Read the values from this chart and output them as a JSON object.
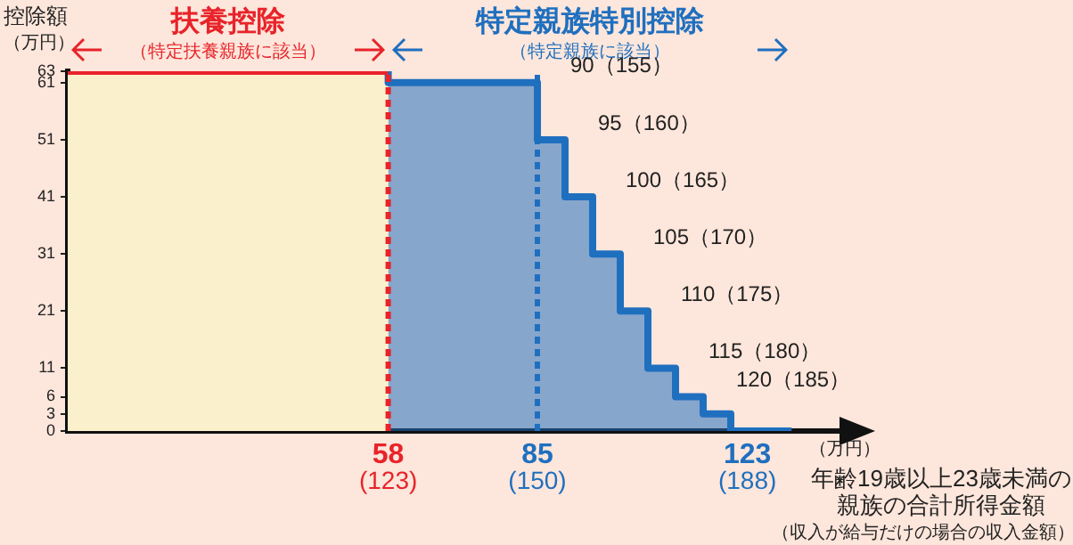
{
  "chart_data": {
    "type": "step",
    "ylabel": "控除額（万円）",
    "xlabel": "年齢19歳以上23歳未満の親族の合計所得金額",
    "xlim": [
      0,
      140
    ],
    "xticks": [
      58,
      85,
      123
    ],
    "x2lim": [
      65,
      205
    ],
    "x2ticks": [
      {
        "value": 123,
        "label": "(123)"
      },
      {
        "value": 150,
        "label": "(150)"
      },
      {
        "value": 188,
        "label": "(188)"
      }
    ],
    "ylim": [
      0,
      63
    ],
    "yticks": [
      0,
      3,
      6,
      11,
      21,
      31,
      41,
      51,
      61,
      63
    ],
    "series": [
      {
        "name": "扶養控除",
        "color": "#e8232a",
        "x": [
          0,
          58
        ],
        "values": [
          63,
          63
        ]
      },
      {
        "name": "特定親族特別控除",
        "type": "area",
        "color": "#1f6fbf",
        "x": [
          58,
          85,
          90,
          95,
          100,
          105,
          110,
          115,
          120,
          123,
          131
        ],
        "values": [
          63,
          61,
          51,
          41,
          31,
          21,
          11,
          6,
          3,
          0,
          0
        ]
      }
    ],
    "bands": [
      {
        "axis": "x",
        "from": 0,
        "to": 58,
        "color": "#fbf0cc"
      }
    ],
    "ref_lines": [
      {
        "axis": "x",
        "value": 58,
        "color": "#e8232a",
        "line_style": "dotted"
      },
      {
        "axis": "x",
        "value": 85,
        "color": "#1f6fbf",
        "line_style": "dotted"
      }
    ],
    "annotations": [
      "（特定扶養親族に該当）",
      "（特定親族に該当）",
      "（万円）",
      "（収入が給与だけの場合の収入金額）",
      {
        "text": "90（155）",
        "x": 90,
        "y": 51
      },
      {
        "text": "95（160）",
        "x": 95,
        "y": 41
      },
      {
        "text": "100（165）",
        "x": 100,
        "y": 31
      },
      {
        "text": "105（170）",
        "x": 105,
        "y": 21
      },
      {
        "text": "110（175）",
        "x": 110,
        "y": 11
      },
      {
        "text": "115（180）",
        "x": 115,
        "y": 6
      },
      {
        "text": "120（185）",
        "x": 120,
        "y": 3
      }
    ],
    "legend": false
  }
}
